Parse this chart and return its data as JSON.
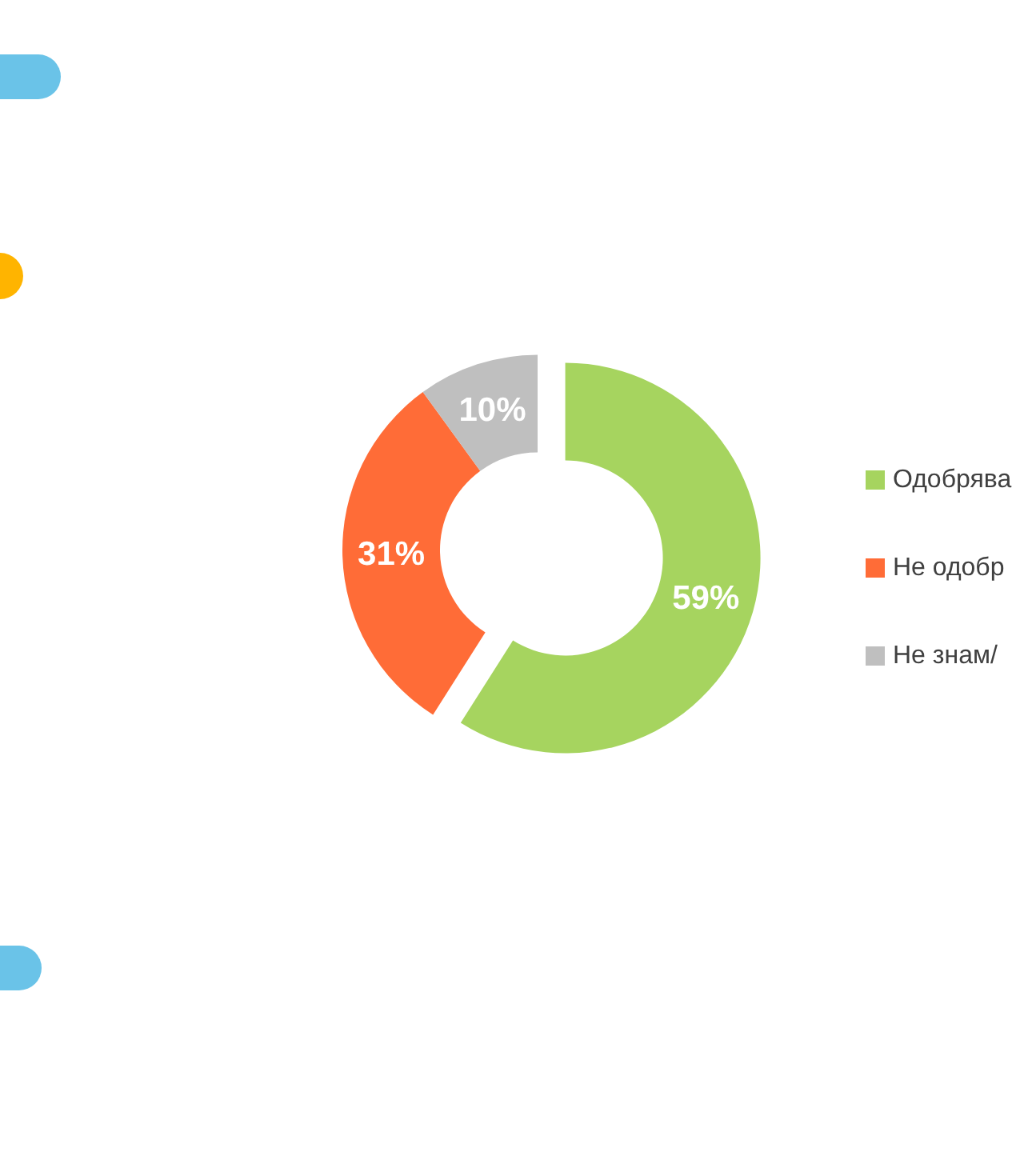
{
  "chart_data": {
    "type": "donut",
    "categories": [
      "Одобрява",
      "Не одобр",
      "Не знам/"
    ],
    "values": [
      59,
      31,
      10
    ],
    "colors": [
      "#a6d45f",
      "#ff6c37",
      "#bfbfbf"
    ],
    "value_labels": [
      "59%",
      "31%",
      "10%"
    ],
    "legend": "right"
  }
}
